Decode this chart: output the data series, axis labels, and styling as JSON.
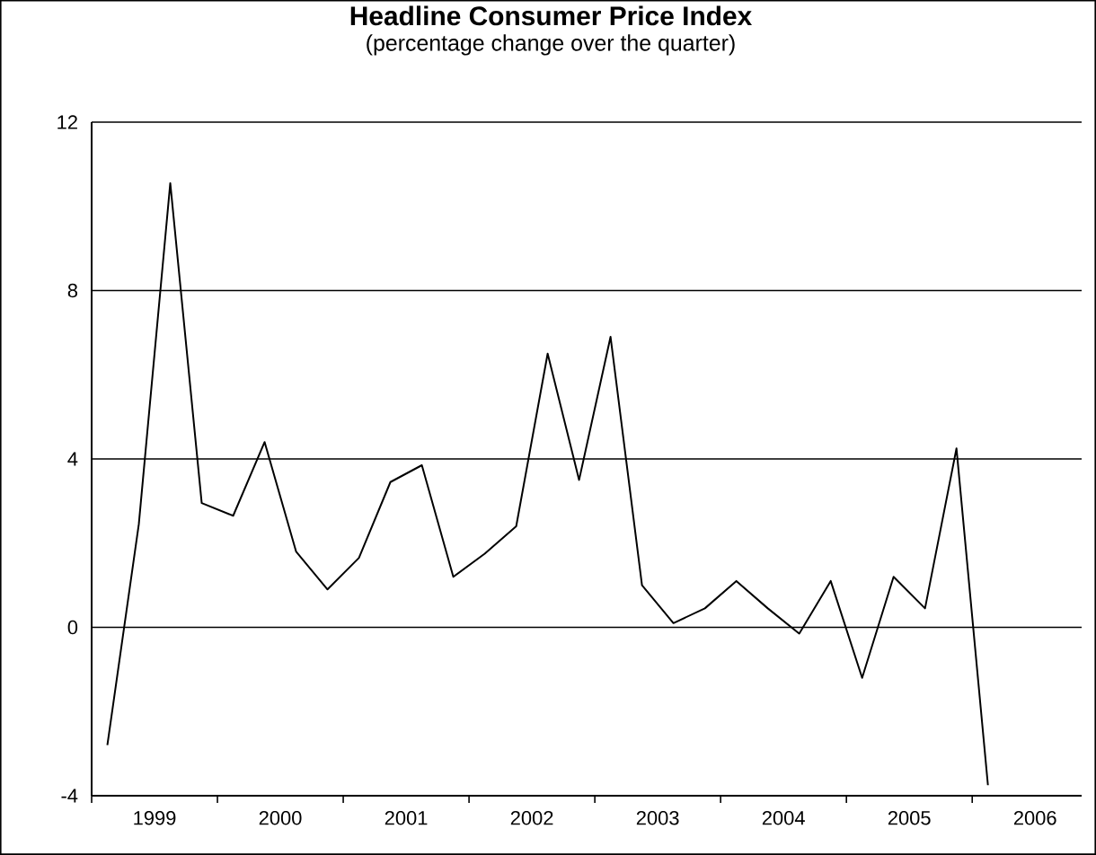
{
  "chart_data": {
    "type": "line",
    "title": "Headline Consumer Price Index",
    "subtitle": "(percentage change over the quarter)",
    "x": [
      1999.125,
      1999.375,
      1999.625,
      1999.875,
      2000.125,
      2000.375,
      2000.625,
      2000.875,
      2001.125,
      2001.375,
      2001.625,
      2001.875,
      2002.125,
      2002.375,
      2002.625,
      2002.875,
      2003.125,
      2003.375,
      2003.625,
      2003.875,
      2004.125,
      2004.375,
      2004.625,
      2004.875,
      2005.125,
      2005.375,
      2005.625,
      2005.875,
      2006.125
    ],
    "series": [
      {
        "color": "#000000",
        "values": [
          -2.8,
          2.45,
          10.55,
          2.95,
          2.65,
          4.4,
          1.8,
          0.9,
          1.65,
          3.45,
          3.85,
          1.2,
          1.75,
          2.4,
          6.5,
          3.5,
          6.9,
          1.0,
          0.1,
          0.45,
          1.1,
          0.45,
          -0.15,
          1.1,
          -1.2,
          1.2,
          0.45,
          4.25,
          -3.75
        ]
      }
    ],
    "xlim": [
      1999,
      2006.87
    ],
    "ylim": [
      -4,
      12
    ],
    "yticks": [
      -4,
      0,
      4,
      8,
      12
    ],
    "xticks": [
      {
        "value": 1999,
        "label": null
      },
      {
        "value": 1999.5,
        "label": "1999"
      },
      {
        "value": 2000,
        "label": null
      },
      {
        "value": 2000.5,
        "label": "2000"
      },
      {
        "value": 2001,
        "label": null
      },
      {
        "value": 2001.5,
        "label": "2001"
      },
      {
        "value": 2002,
        "label": null
      },
      {
        "value": 2002.5,
        "label": "2002"
      },
      {
        "value": 2003,
        "label": null
      },
      {
        "value": 2003.5,
        "label": "2003"
      },
      {
        "value": 2004,
        "label": null
      },
      {
        "value": 2004.5,
        "label": "2004"
      },
      {
        "value": 2005,
        "label": null
      },
      {
        "value": 2005.5,
        "label": "2005"
      },
      {
        "value": 2006,
        "label": null
      },
      {
        "value": 2006.5,
        "label": "2006"
      }
    ],
    "grid": "y",
    "marker": "none",
    "line_style": "solid"
  }
}
